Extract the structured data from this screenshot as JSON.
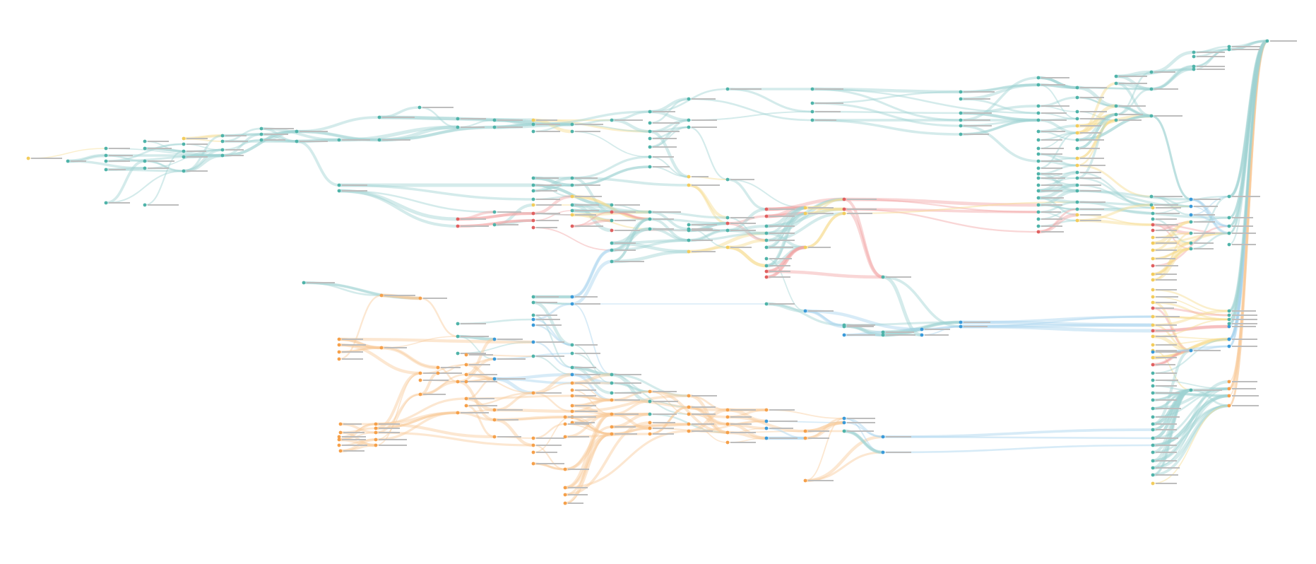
{
  "diagram": {
    "type": "data-lineage-graph",
    "colors": {
      "teal": "#4fb3a9",
      "teal_dark": "#2e9c8f",
      "blue": "#3a9ad9",
      "orange": "#f5a04a",
      "red": "#e06060",
      "yellow": "#f2cc5c",
      "edge_teal": "#9fd3d2",
      "edge_blue": "#a7d3ee",
      "edge_orange": "#f9c99a",
      "edge_red": "#f2a5a5",
      "edge_yellow": "#f6dc8e"
    },
    "nodes": [],
    "edges": []
  }
}
